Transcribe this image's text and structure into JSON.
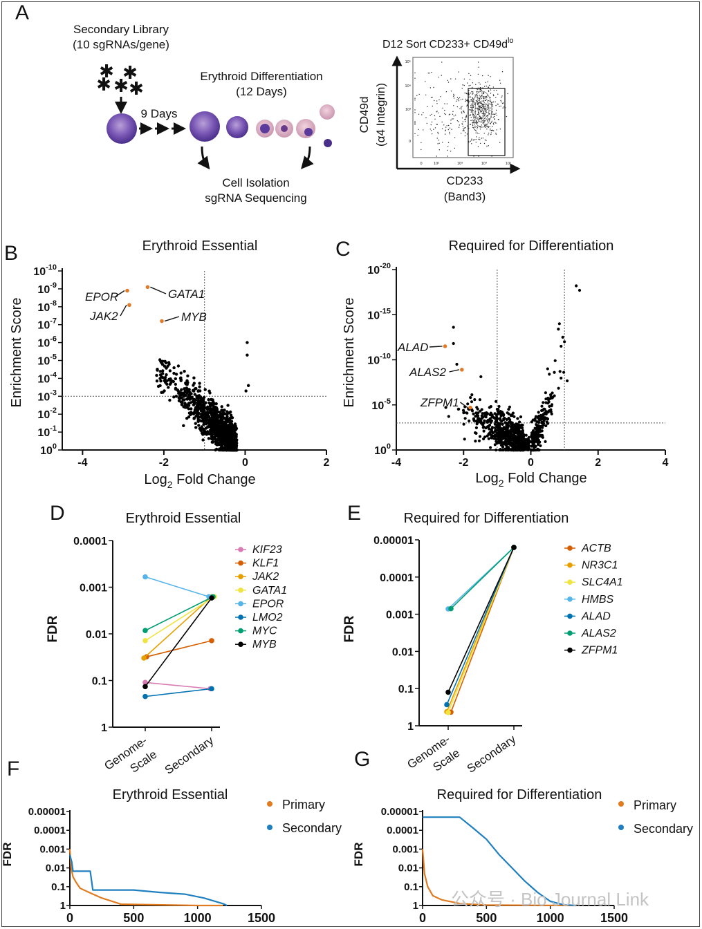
{
  "panel_letters": {
    "A": "A",
    "B": "B",
    "C": "C",
    "D": "D",
    "E": "E",
    "F": "F",
    "G": "G"
  },
  "panel_a": {
    "library_title": "Secondary Library",
    "library_subtitle": "(10 sgRNAs/gene)",
    "days_label": "9 Days",
    "diff_title": "Erythroid Differentiation",
    "diff_subtitle": "(12 Days)",
    "isolation_line1": "Cell Isolation",
    "isolation_line2": "sgRNA Sequencing",
    "sort_title": "D12 Sort CD233+ CD49d",
    "sort_title_sup": "lo",
    "flow_ylabel_line1": "CD49d",
    "flow_ylabel_line2": "(α4 Integrin)",
    "flow_xlabel_line1": "CD233",
    "flow_xlabel_line2": "(Band3)",
    "flow_ticks": [
      "0",
      "10²",
      "10³",
      "10⁴",
      "10⁵"
    ],
    "flow_yticks": [
      "0",
      "10³",
      "10⁴",
      "10⁵"
    ]
  },
  "panel_b": {
    "title": "Erythroid Essential",
    "ylabel": "Enrichment Score",
    "xlabel_main": "Log",
    "xlabel_sub": "2",
    "xlabel_rest": " Fold Change",
    "xticks": [
      "-4",
      "-2",
      "0",
      "2"
    ],
    "ytick_base": "10",
    "ytick_exps": [
      "0",
      "-1",
      "-2",
      "-3",
      "-4",
      "-5",
      "-6",
      "-7",
      "-8",
      "-9",
      "-10"
    ],
    "genes": [
      {
        "name": "EPOR",
        "x": -2.9,
        "y": 8.9
      },
      {
        "name": "JAK2",
        "x": -2.85,
        "y": 8.1
      },
      {
        "name": "GATA1",
        "x": -2.4,
        "y": 9.1
      },
      {
        "name": "MYB",
        "x": -2.05,
        "y": 7.2
      }
    ],
    "highlight_color": "#e07b2a"
  },
  "panel_c": {
    "title": "Required for Differentiation",
    "ylabel": "Enrichment Score",
    "xlabel_main": "Log",
    "xlabel_sub": "2",
    "xlabel_rest": " Fold Change",
    "xticks": [
      "-4",
      "-2",
      "0",
      "2",
      "4"
    ],
    "ytick_base": "10",
    "ytick_exps": [
      "0",
      "-5",
      "-10",
      "-15",
      "-20"
    ],
    "genes": [
      {
        "name": "ALAD",
        "x": -2.55,
        "y": 11.5
      },
      {
        "name": "ALAS2",
        "x": -2.05,
        "y": 8.9
      },
      {
        "name": "ZFPM1",
        "x": -1.8,
        "y": 4.7
      }
    ]
  },
  "panel_d": {
    "title": "Erythroid Essential",
    "ylabel": "FDR",
    "yticks": [
      "0.0001",
      "0.001",
      "0.01",
      "0.1",
      "1"
    ],
    "xcats": [
      "Genome-\nScale",
      "Secondary"
    ],
    "xcat1_line1": "Genome-",
    "xcat1_line2": "Scale",
    "xcat2": "Secondary"
  },
  "panel_e": {
    "title": "Required for Differentiation",
    "ylabel": "FDR",
    "yticks": [
      "0.00001",
      "0.0001",
      "0.001",
      "0.01",
      "0.1",
      "1"
    ],
    "xcat1_line1": "Genome-",
    "xcat1_line2": "Scale",
    "xcat2": "Secondary"
  },
  "panel_f": {
    "title": "Erythroid Essential",
    "ylabel": "FDR",
    "yticks": [
      "0.00001",
      "0.0001",
      "0.001",
      "0.01",
      "0.1",
      "1"
    ],
    "xticks": [
      "0",
      "500",
      "1000",
      "1500"
    ],
    "legend": [
      "Primary",
      "Secondary"
    ]
  },
  "panel_g": {
    "title": "Required for Differentiation",
    "ylabel": "FDR",
    "yticks": [
      "0.00001",
      "0.0001",
      "0.001",
      "0.01",
      "0.1",
      "1"
    ],
    "xticks": [
      "0",
      "500",
      "1000",
      "1500"
    ],
    "legend": [
      "Primary",
      "Secondary"
    ],
    "watermark": "公众号 · Bio Journal Link"
  },
  "colors": {
    "primary": "#e07b1f",
    "secondary": "#1f7fbf"
  },
  "chart_data": [
    {
      "type": "line",
      "title": "Erythroid Essential",
      "ylabel": "FDR",
      "log_y": true,
      "ylim": [
        1,
        0.0001
      ],
      "categories": [
        "Genome-Scale",
        "Secondary"
      ],
      "series": [
        {
          "name": "KIF23",
          "color": "#d97bb3",
          "values": [
            0.11,
            0.15
          ]
        },
        {
          "name": "KLF1",
          "color": "#d55e00",
          "values": [
            0.031,
            0.014
          ]
        },
        {
          "name": "JAK2",
          "color": "#e69f00",
          "values": [
            0.033,
            0.0016
          ]
        },
        {
          "name": "GATA1",
          "color": "#f0e442",
          "values": [
            0.014,
            0.0016
          ]
        },
        {
          "name": "EPOR",
          "color": "#56b4e9",
          "values": [
            0.0006,
            0.0016
          ]
        },
        {
          "name": "LMO2",
          "color": "#0072b2",
          "values": [
            0.22,
            0.15
          ]
        },
        {
          "name": "MYC",
          "color": "#009e73",
          "values": [
            0.0085,
            0.0016
          ]
        },
        {
          "name": "MYB",
          "color": "#000000",
          "values": [
            0.135,
            0.0017
          ]
        }
      ]
    },
    {
      "type": "line",
      "title": "Required for Differentiation",
      "ylabel": "FDR",
      "log_y": true,
      "ylim": [
        1,
        1e-05
      ],
      "categories": [
        "Genome-Scale",
        "Secondary"
      ],
      "series": [
        {
          "name": "ACTB",
          "color": "#d55e00",
          "values": [
            0.43,
            1.6e-05
          ]
        },
        {
          "name": "NR3C1",
          "color": "#e69f00",
          "values": [
            0.42,
            1.6e-05
          ]
        },
        {
          "name": "SLC4A1",
          "color": "#f0e442",
          "values": [
            0.44,
            1.6e-05
          ]
        },
        {
          "name": "HMBS",
          "color": "#56b4e9",
          "values": [
            0.00072,
            1.6e-05
          ]
        },
        {
          "name": "ALAD",
          "color": "#0072b2",
          "values": [
            0.27,
            1.6e-05
          ]
        },
        {
          "name": "ALAS2",
          "color": "#009e73",
          "values": [
            0.00071,
            1.6e-05
          ]
        },
        {
          "name": "ZFPM1",
          "color": "#000000",
          "values": [
            0.125,
            1.6e-05
          ]
        }
      ]
    },
    {
      "type": "line",
      "title": "Erythroid Essential",
      "ylabel": "FDR",
      "log_y": true,
      "xlim": [
        0,
        1500
      ],
      "ylim": [
        1,
        1e-05
      ],
      "series": [
        {
          "name": "Primary",
          "x": [
            0,
            10,
            25,
            50,
            80,
            150,
            250,
            400,
            1000,
            1200
          ],
          "y": [
            0.001,
            0.01,
            0.03,
            0.06,
            0.12,
            0.2,
            0.4,
            0.85,
            1,
            1
          ]
        },
        {
          "name": "Secondary",
          "x": [
            0,
            15,
            25,
            160,
            180,
            500,
            700,
            900,
            1050,
            1200,
            1230
          ],
          "y": [
            0.002,
            0.005,
            0.015,
            0.015,
            0.15,
            0.15,
            0.2,
            0.25,
            0.4,
            0.8,
            1
          ]
        }
      ]
    },
    {
      "type": "line",
      "title": "Required for Differentiation",
      "ylabel": "FDR",
      "log_y": true,
      "xlim": [
        0,
        1500
      ],
      "ylim": [
        1,
        1e-05
      ],
      "series": [
        {
          "name": "Primary",
          "x": [
            0,
            15,
            40,
            80,
            150,
            300,
            500,
            1200
          ],
          "y": [
            0.001,
            0.02,
            0.1,
            0.3,
            0.5,
            0.8,
            0.95,
            1
          ]
        },
        {
          "name": "Secondary",
          "x": [
            0,
            290,
            400,
            500,
            600,
            700,
            800,
            900,
            1000,
            1100,
            1200
          ],
          "y": [
            2e-05,
            2e-05,
            8e-05,
            0.0003,
            0.002,
            0.01,
            0.05,
            0.2,
            0.6,
            0.9,
            1
          ]
        }
      ]
    }
  ]
}
